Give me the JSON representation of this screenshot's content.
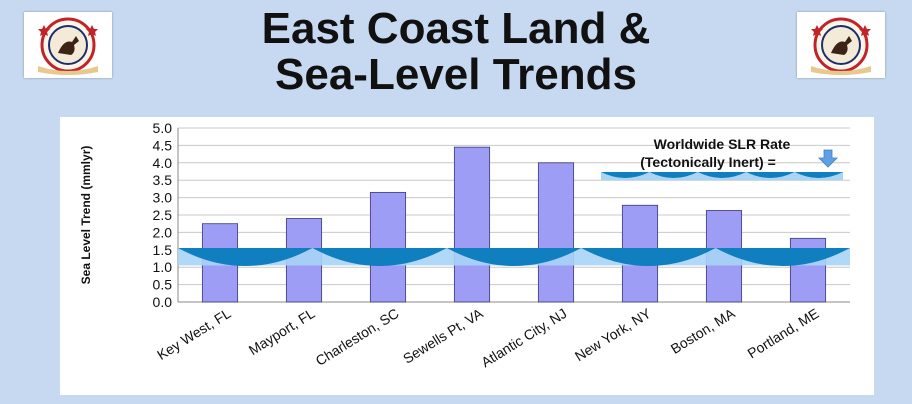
{
  "slide": {
    "title_line1": "East Coast Land &",
    "title_line2": "Sea-Level Trends"
  },
  "logos": [
    {
      "icon": "tea-party-logo-icon",
      "ring_text": "FLORIDA TEA PARTY"
    },
    {
      "icon": "tea-party-logo-icon",
      "ring_text": "FLORIDA TEA PARTY"
    }
  ],
  "chart_data": {
    "type": "bar",
    "title": "",
    "xlabel": "",
    "ylabel": "Sea Level Trend (mmlyr)",
    "categories": [
      "Key West, FL",
      "Mayport, FL",
      "Charleston, SC",
      "Sewells Pt, VA",
      "Atlantic City, NJ",
      "New York, NY",
      "Boston, MA",
      "Portland, ME"
    ],
    "values": [
      2.25,
      2.4,
      3.15,
      4.45,
      4.0,
      2.78,
      2.63,
      1.83
    ],
    "ylim": [
      0.0,
      5.0
    ],
    "yticks": [
      "0.0",
      "0.5",
      "1.0",
      "1.5",
      "2.0",
      "2.5",
      "3.0",
      "3.5",
      "4.0",
      "4.5",
      "5.0"
    ],
    "grid": true,
    "bar_color": "#9d9df5",
    "bar_edge_color": "#3a3a78",
    "band": {
      "from": 1.05,
      "to": 1.55,
      "color": "#a8d4f6",
      "wave_color": "#0f7fbf"
    },
    "annotation": {
      "line1": "Worldwide SLR Rate",
      "line2": "(Tectonically Inert) =",
      "arrow_icon": "down-arrow-icon",
      "arrow_color": "#5f9fe3"
    }
  },
  "colors": {
    "background": "#c6d9f1",
    "panel": "#ffffff"
  }
}
